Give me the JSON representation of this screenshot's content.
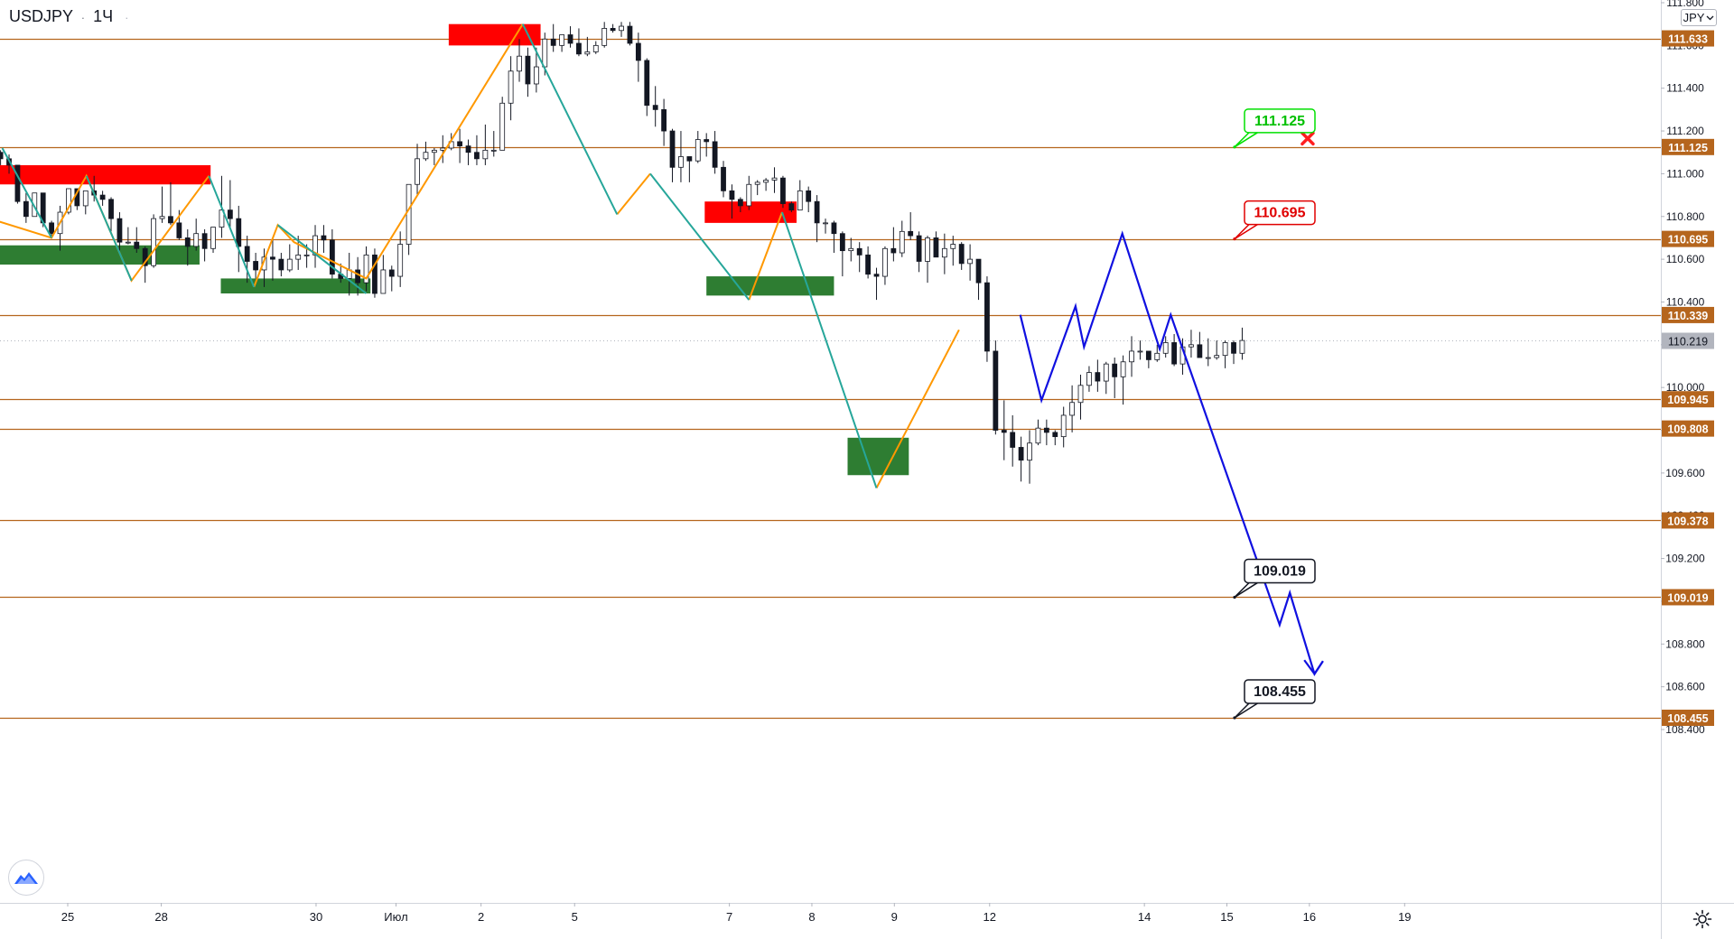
{
  "symbol": {
    "pair": "USDJPY",
    "interval": "1Ч",
    "sep": "·"
  },
  "currency_button": "JPY",
  "colors": {
    "level_line": "#b5651d",
    "level_label_bg": "#b5651d",
    "resistance_zone": "#ff0000",
    "support_zone": "#2e7d32",
    "zigzag_up": "#ff9800",
    "zigzag_down": "#26a69a",
    "forecast": "#1010e0",
    "candle": "#131722",
    "current_price_bg": "#b2b5be"
  },
  "icons": {
    "logo": "tradingview-logo-icon",
    "settings": "gear-icon",
    "invalidated": "red-cross-icon",
    "currency_dropdown": "chevron-down-icon"
  },
  "chart_data": {
    "type": "candlestick",
    "y_axis": {
      "ticks": [
        "111.800",
        "111.600",
        "111.400",
        "111.200",
        "111.000",
        "110.800",
        "110.600",
        "110.400",
        "110.200",
        "110.000",
        "109.800",
        "109.600",
        "109.400",
        "109.200",
        "109.000",
        "108.800",
        "108.600",
        "108.400"
      ],
      "tick_values": [
        111.8,
        111.6,
        111.4,
        111.2,
        111.0,
        110.8,
        110.6,
        110.4,
        110.2,
        110.0,
        109.8,
        109.6,
        109.4,
        109.2,
        109.0,
        108.8,
        108.6,
        108.4
      ],
      "range": [
        108.35,
        111.82
      ]
    },
    "x_axis": {
      "ticks": [
        "25",
        "28",
        "30",
        "Июл",
        "2",
        "5",
        "7",
        "8",
        "9",
        "12",
        "14",
        "15",
        "16",
        "19"
      ],
      "tick_index": [
        8.9,
        19.9,
        38.1,
        47.5,
        57.5,
        68.5,
        86.7,
        96.4,
        106.1,
        117.3,
        135.5,
        145.2,
        154.9,
        166.1
      ]
    },
    "horizontal_levels": [
      "111.633",
      "111.125",
      "110.695",
      "110.339",
      "109.945",
      "109.808",
      "109.378",
      "109.019",
      "108.455"
    ],
    "current_price": "110.219",
    "price_callouts": [
      {
        "value": "111.125",
        "border": "#00e000",
        "text_color": "#00c000",
        "note": "reached"
      },
      {
        "value": "110.695",
        "border": "#e00000",
        "text_color": "#e00000"
      },
      {
        "value": "109.019",
        "border": "#131722",
        "text_color": "#131722"
      },
      {
        "value": "108.455",
        "border": "#131722",
        "text_color": "#131722"
      }
    ],
    "zones": [
      {
        "type": "resistance",
        "i0": -0.5,
        "i1": 25.7,
        "p_top": 111.04,
        "p_bottom": 110.95
      },
      {
        "type": "support",
        "i0": -0.5,
        "i1": 24.4,
        "p_top": 110.665,
        "p_bottom": 110.575
      },
      {
        "type": "support",
        "i0": 26.9,
        "i1": 44.5,
        "p_top": 110.51,
        "p_bottom": 110.44
      },
      {
        "type": "resistance",
        "i0": 53.7,
        "i1": 64.5,
        "p_top": 111.7,
        "p_bottom": 111.6
      },
      {
        "type": "resistance",
        "i0": 83.8,
        "i1": 94.6,
        "p_top": 110.87,
        "p_bottom": 110.77
      },
      {
        "type": "support",
        "i0": 84.0,
        "i1": 99.0,
        "p_top": 110.52,
        "p_bottom": 110.43
      },
      {
        "type": "support",
        "i0": 100.6,
        "i1": 107.8,
        "p_top": 109.765,
        "p_bottom": 109.59
      }
    ],
    "zigzag_up": [
      [
        [
          -0.3,
          110.79
        ],
        [
          7.0,
          110.7
        ],
        [
          11.1,
          110.99
        ],
        [
          16.4,
          110.5
        ],
        [
          25.5,
          110.99
        ]
      ],
      [
        [
          30.8,
          110.47
        ],
        [
          33.6,
          110.76
        ],
        [
          35.5,
          110.68
        ],
        [
          44.0,
          110.51
        ],
        [
          62.4,
          111.7
        ]
      ],
      [
        [
          73.5,
          110.81
        ],
        [
          77.4,
          111.0
        ]
      ],
      [
        [
          89.0,
          110.41
        ],
        [
          92.9,
          110.82
        ]
      ],
      [
        [
          104.0,
          109.53
        ],
        [
          113.7,
          110.27
        ]
      ]
    ],
    "zigzag_down": [
      [
        [
          1.2,
          111.12
        ],
        [
          7.0,
          110.7
        ]
      ],
      [
        [
          11.1,
          110.99
        ],
        [
          16.4,
          110.5
        ]
      ],
      [
        [
          25.5,
          110.99
        ],
        [
          30.8,
          110.47
        ]
      ],
      [
        [
          33.6,
          110.76
        ],
        [
          44.0,
          110.44
        ]
      ],
      [
        [
          62.4,
          111.7
        ],
        [
          73.5,
          110.81
        ]
      ],
      [
        [
          77.4,
          111.0
        ],
        [
          89.0,
          110.41
        ]
      ],
      [
        [
          92.9,
          110.82
        ],
        [
          104.0,
          109.53
        ]
      ]
    ],
    "forecast_path": [
      [
        120.9,
        110.34
      ],
      [
        123.4,
        109.94
      ],
      [
        127.4,
        110.38
      ],
      [
        128.4,
        110.19
      ],
      [
        132.9,
        110.72
      ],
      [
        137.3,
        110.18
      ],
      [
        138.6,
        110.34
      ],
      [
        151.4,
        108.89
      ],
      [
        152.6,
        109.04
      ],
      [
        155.5,
        108.66
      ],
      [
        156.5,
        108.72
      ]
    ],
    "forecast_arrow": {
      "tip": [
        155.5,
        108.66
      ],
      "wing_a": [
        154.3,
        108.725
      ],
      "wing_b": [
        156.5,
        108.72
      ]
    },
    "invalidation_mark": [
      154.7,
      111.165
    ],
    "candles_ohlc": [
      [
        110.96,
        111.12,
        110.94,
        111.1
      ],
      [
        111.1,
        111.11,
        111.04,
        111.07
      ],
      [
        111.07,
        111.09,
        111.0,
        111.04
      ],
      [
        111.04,
        111.04,
        110.86,
        110.87
      ],
      [
        110.87,
        110.91,
        110.77,
        110.8
      ],
      [
        110.8,
        110.91,
        110.8,
        110.91
      ],
      [
        110.91,
        110.91,
        110.75,
        110.77
      ],
      [
        110.77,
        110.78,
        110.71,
        110.72
      ],
      [
        110.72,
        110.85,
        110.64,
        110.82
      ],
      [
        110.82,
        110.93,
        110.81,
        110.93
      ],
      [
        110.93,
        110.93,
        110.83,
        110.85
      ],
      [
        110.85,
        110.92,
        110.81,
        110.92
      ],
      [
        110.92,
        110.99,
        110.87,
        110.9
      ],
      [
        110.9,
        110.92,
        110.85,
        110.88
      ],
      [
        110.88,
        110.89,
        110.73,
        110.79
      ],
      [
        110.79,
        110.82,
        110.64,
        110.68
      ],
      [
        110.68,
        110.75,
        110.67,
        110.68
      ],
      [
        110.68,
        110.75,
        110.63,
        110.65
      ],
      [
        110.65,
        110.66,
        110.49,
        110.57
      ],
      [
        110.57,
        110.81,
        110.56,
        110.79
      ],
      [
        110.79,
        110.94,
        110.77,
        110.8
      ],
      [
        110.8,
        110.96,
        110.76,
        110.77
      ],
      [
        110.77,
        110.83,
        110.69,
        110.7
      ],
      [
        110.7,
        110.74,
        110.57,
        110.66
      ],
      [
        110.66,
        110.79,
        110.64,
        110.72
      ],
      [
        110.72,
        110.74,
        110.59,
        110.65
      ],
      [
        110.65,
        110.75,
        110.63,
        110.75
      ],
      [
        110.75,
        110.99,
        110.7,
        110.83
      ],
      [
        110.83,
        110.97,
        110.75,
        110.79
      ],
      [
        110.79,
        110.85,
        110.54,
        110.66
      ],
      [
        110.66,
        110.71,
        110.49,
        110.59
      ],
      [
        110.59,
        110.63,
        110.51,
        110.55
      ],
      [
        110.55,
        110.65,
        110.47,
        110.61
      ],
      [
        110.61,
        110.69,
        110.5,
        110.6
      ],
      [
        110.6,
        110.63,
        110.52,
        110.55
      ],
      [
        110.55,
        110.67,
        110.54,
        110.6
      ],
      [
        110.6,
        110.71,
        110.55,
        110.62
      ],
      [
        110.62,
        110.67,
        110.56,
        110.62
      ],
      [
        110.62,
        110.76,
        110.56,
        110.71
      ],
      [
        110.71,
        110.76,
        110.63,
        110.69
      ],
      [
        110.69,
        110.74,
        110.51,
        110.53
      ],
      [
        110.53,
        110.58,
        110.49,
        110.51
      ],
      [
        110.51,
        110.63,
        110.43,
        110.55
      ],
      [
        110.55,
        110.61,
        110.43,
        110.49
      ],
      [
        110.49,
        110.66,
        110.45,
        110.62
      ],
      [
        110.62,
        110.65,
        110.42,
        110.44
      ],
      [
        110.44,
        110.62,
        110.44,
        110.55
      ],
      [
        110.55,
        110.57,
        110.45,
        110.52
      ],
      [
        110.52,
        110.73,
        110.47,
        110.67
      ],
      [
        110.67,
        110.95,
        110.62,
        110.95
      ],
      [
        110.95,
        111.14,
        110.9,
        111.07
      ],
      [
        111.07,
        111.15,
        111.06,
        111.1
      ],
      [
        111.1,
        111.12,
        111.04,
        111.11
      ],
      [
        111.11,
        111.18,
        111.05,
        111.12
      ],
      [
        111.12,
        111.19,
        111.11,
        111.15
      ],
      [
        111.15,
        111.21,
        111.05,
        111.13
      ],
      [
        111.13,
        111.16,
        111.04,
        111.1
      ],
      [
        111.1,
        111.18,
        111.04,
        111.07
      ],
      [
        111.07,
        111.23,
        111.04,
        111.11
      ],
      [
        111.11,
        111.2,
        111.08,
        111.11
      ],
      [
        111.11,
        111.36,
        111.11,
        111.33
      ],
      [
        111.33,
        111.55,
        111.25,
        111.48
      ],
      [
        111.48,
        111.63,
        111.43,
        111.55
      ],
      [
        111.55,
        111.59,
        111.36,
        111.42
      ],
      [
        111.42,
        111.59,
        111.38,
        111.5
      ],
      [
        111.5,
        111.66,
        111.46,
        111.63
      ],
      [
        111.63,
        111.7,
        111.57,
        111.6
      ],
      [
        111.6,
        111.65,
        111.57,
        111.65
      ],
      [
        111.65,
        111.69,
        111.59,
        111.61
      ],
      [
        111.61,
        111.68,
        111.55,
        111.56
      ],
      [
        111.56,
        111.64,
        111.55,
        111.57
      ],
      [
        111.57,
        111.62,
        111.56,
        111.6
      ],
      [
        111.6,
        111.71,
        111.59,
        111.68
      ],
      [
        111.68,
        111.7,
        111.66,
        111.67
      ],
      [
        111.67,
        111.71,
        111.64,
        111.69
      ],
      [
        111.69,
        111.71,
        111.6,
        111.61
      ],
      [
        111.61,
        111.66,
        111.43,
        111.53
      ],
      [
        111.53,
        111.54,
        111.27,
        111.32
      ],
      [
        111.32,
        111.41,
        111.22,
        111.3
      ],
      [
        111.3,
        111.35,
        111.13,
        111.2
      ],
      [
        111.2,
        111.21,
        110.96,
        111.03
      ],
      [
        111.03,
        111.2,
        110.96,
        111.08
      ],
      [
        111.08,
        111.08,
        110.96,
        111.06
      ],
      [
        111.06,
        111.2,
        111.05,
        111.16
      ],
      [
        111.16,
        111.19,
        111.08,
        111.15
      ],
      [
        111.15,
        111.2,
        111.0,
        111.03
      ],
      [
        111.03,
        111.06,
        110.89,
        110.92
      ],
      [
        110.92,
        110.95,
        110.79,
        110.88
      ],
      [
        110.88,
        110.89,
        110.82,
        110.85
      ],
      [
        110.85,
        110.99,
        110.83,
        110.95
      ],
      [
        110.95,
        110.97,
        110.9,
        110.96
      ],
      [
        110.96,
        110.98,
        110.92,
        110.97
      ],
      [
        110.97,
        111.03,
        110.91,
        110.98
      ],
      [
        110.98,
        110.99,
        110.84,
        110.86
      ],
      [
        110.86,
        110.87,
        110.82,
        110.83
      ],
      [
        110.83,
        110.97,
        110.83,
        110.92
      ],
      [
        110.92,
        110.94,
        110.82,
        110.87
      ],
      [
        110.87,
        110.9,
        110.68,
        110.77
      ],
      [
        110.77,
        110.79,
        110.72,
        110.77
      ],
      [
        110.77,
        110.78,
        110.63,
        110.72
      ],
      [
        110.72,
        110.73,
        110.52,
        110.64
      ],
      [
        110.64,
        110.7,
        110.59,
        110.65
      ],
      [
        110.65,
        110.68,
        110.54,
        110.62
      ],
      [
        110.62,
        110.66,
        110.51,
        110.53
      ],
      [
        110.53,
        110.56,
        110.41,
        110.52
      ],
      [
        110.52,
        110.66,
        110.48,
        110.65
      ],
      [
        110.65,
        110.75,
        110.59,
        110.63
      ],
      [
        110.63,
        110.78,
        110.61,
        110.73
      ],
      [
        110.73,
        110.82,
        110.69,
        110.71
      ],
      [
        110.71,
        110.73,
        110.54,
        110.59
      ],
      [
        110.59,
        110.71,
        110.49,
        110.7
      ],
      [
        110.7,
        110.73,
        110.61,
        110.61
      ],
      [
        110.61,
        110.72,
        110.53,
        110.65
      ],
      [
        110.65,
        110.71,
        110.57,
        110.67
      ],
      [
        110.67,
        110.68,
        110.55,
        110.58
      ],
      [
        110.58,
        110.67,
        110.5,
        110.6
      ],
      [
        110.6,
        110.6,
        110.41,
        110.49
      ],
      [
        110.49,
        110.52,
        110.12,
        110.17
      ],
      [
        110.17,
        110.22,
        109.78,
        109.8
      ],
      [
        109.8,
        109.94,
        109.66,
        109.79
      ],
      [
        109.79,
        109.87,
        109.63,
        109.72
      ],
      [
        109.72,
        109.77,
        109.56,
        109.66
      ],
      [
        109.66,
        109.8,
        109.55,
        109.74
      ],
      [
        109.74,
        109.85,
        109.73,
        109.81
      ],
      [
        109.81,
        109.85,
        109.73,
        109.79
      ],
      [
        109.79,
        109.8,
        109.73,
        109.77
      ],
      [
        109.77,
        109.91,
        109.72,
        109.87
      ],
      [
        109.87,
        110.01,
        109.79,
        109.93
      ],
      [
        109.93,
        110.06,
        109.85,
        110.01
      ],
      [
        110.01,
        110.1,
        109.98,
        110.07
      ],
      [
        110.07,
        110.13,
        109.98,
        110.03
      ],
      [
        110.03,
        110.12,
        109.97,
        110.11
      ],
      [
        110.11,
        110.14,
        109.95,
        110.05
      ],
      [
        110.05,
        110.15,
        109.92,
        110.12
      ],
      [
        110.12,
        110.24,
        110.05,
        110.17
      ],
      [
        110.17,
        110.22,
        110.13,
        110.17
      ],
      [
        110.17,
        110.17,
        110.09,
        110.13
      ],
      [
        110.13,
        110.2,
        110.12,
        110.16
      ],
      [
        110.16,
        110.24,
        110.14,
        110.21
      ],
      [
        110.21,
        110.25,
        110.1,
        110.11
      ],
      [
        110.11,
        110.23,
        110.06,
        110.19
      ],
      [
        110.19,
        110.27,
        110.14,
        110.2
      ],
      [
        110.2,
        110.26,
        110.14,
        110.14
      ],
      [
        110.14,
        110.23,
        110.1,
        110.14
      ],
      [
        110.14,
        110.22,
        110.13,
        110.15
      ],
      [
        110.15,
        110.22,
        110.09,
        110.21
      ],
      [
        110.21,
        110.22,
        110.11,
        110.16
      ],
      [
        110.16,
        110.28,
        110.13,
        110.22
      ]
    ]
  }
}
